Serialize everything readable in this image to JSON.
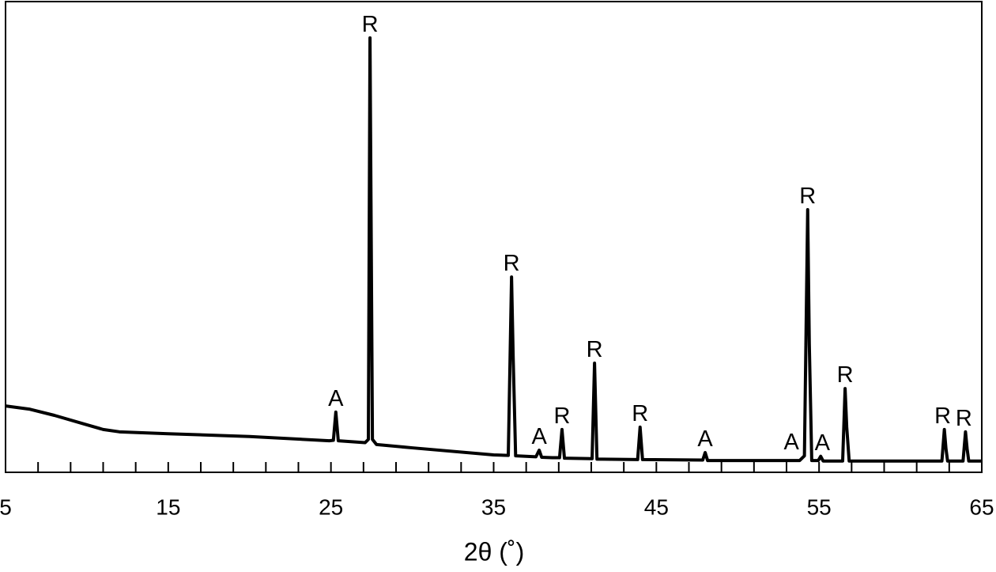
{
  "chart_data": {
    "type": "line",
    "xlabel": "2θ (˚)",
    "xlim": [
      5,
      65
    ],
    "xticks": [
      5,
      15,
      25,
      35,
      45,
      55,
      65
    ],
    "xminorticks": [
      7,
      9,
      11,
      13,
      17,
      19,
      21,
      23,
      27,
      29,
      31,
      33,
      37,
      39,
      41,
      43,
      47,
      49,
      51,
      53,
      57,
      59,
      61,
      63
    ],
    "ylim": [
      0,
      100
    ],
    "color": "#000000",
    "x": [
      5,
      6.5,
      8,
      10,
      11,
      12,
      15,
      20,
      24.9,
      25.15,
      25.3,
      25.45,
      27.1,
      27.3,
      27.4,
      27.55,
      27.8,
      30,
      35,
      35.9,
      36.1,
      36.2,
      36.35,
      37.6,
      37.8,
      37.95,
      38.6,
      39.05,
      39.2,
      39.35,
      41.05,
      41.2,
      41.35,
      43.85,
      44.0,
      44.15,
      47.85,
      48.0,
      48.15,
      53.8,
      54.1,
      54.3,
      54.4,
      54.55,
      54.95,
      55.1,
      55.25,
      56.45,
      56.6,
      56.7,
      56.85,
      62.55,
      62.7,
      62.8,
      62.9,
      63.85,
      64.0,
      64.1,
      64.2,
      65
    ],
    "values": [
      14.1,
      13.4,
      12.1,
      10.1,
      9.1,
      8.6,
      8.2,
      7.6,
      6.7,
      6.8,
      12.8,
      6.7,
      6.3,
      7,
      92.3,
      7,
      5.9,
      5.2,
      3.7,
      3.6,
      41.5,
      24.4,
      3.5,
      3.3,
      4.7,
      3.2,
      3.1,
      3.1,
      9.1,
      3.0,
      2.9,
      23.2,
      2.8,
      2.7,
      9.6,
      2.7,
      2.6,
      4.2,
      2.5,
      2.5,
      3.5,
      55.8,
      27.2,
      2.5,
      2.5,
      3.4,
      2.4,
      2.4,
      17.8,
      9.6,
      2.4,
      2.4,
      9.1,
      5,
      2.4,
      2.4,
      8.6,
      5,
      2.4,
      2.4
    ],
    "annotations": [
      {
        "text": "A",
        "x": 25.3,
        "y": 12.8
      },
      {
        "text": "R",
        "x": 27.4,
        "y": 92.3
      },
      {
        "text": "R",
        "x": 36.1,
        "y": 41.5
      },
      {
        "text": "A",
        "x": 37.8,
        "y": 4.7
      },
      {
        "text": "R",
        "x": 39.2,
        "y": 9.1
      },
      {
        "text": "R",
        "x": 41.2,
        "y": 23.2
      },
      {
        "text": "R",
        "x": 44.0,
        "y": 9.6
      },
      {
        "text": "A",
        "x": 48.0,
        "y": 4.2
      },
      {
        "text": "A",
        "x": 53.3,
        "y": 3.5
      },
      {
        "text": "R",
        "x": 54.3,
        "y": 55.8
      },
      {
        "text": "A",
        "x": 55.2,
        "y": 3.4
      },
      {
        "text": "R",
        "x": 56.6,
        "y": 17.8
      },
      {
        "text": "R",
        "x": 62.6,
        "y": 9.1
      },
      {
        "text": "R",
        "x": 63.9,
        "y": 8.6
      }
    ]
  }
}
